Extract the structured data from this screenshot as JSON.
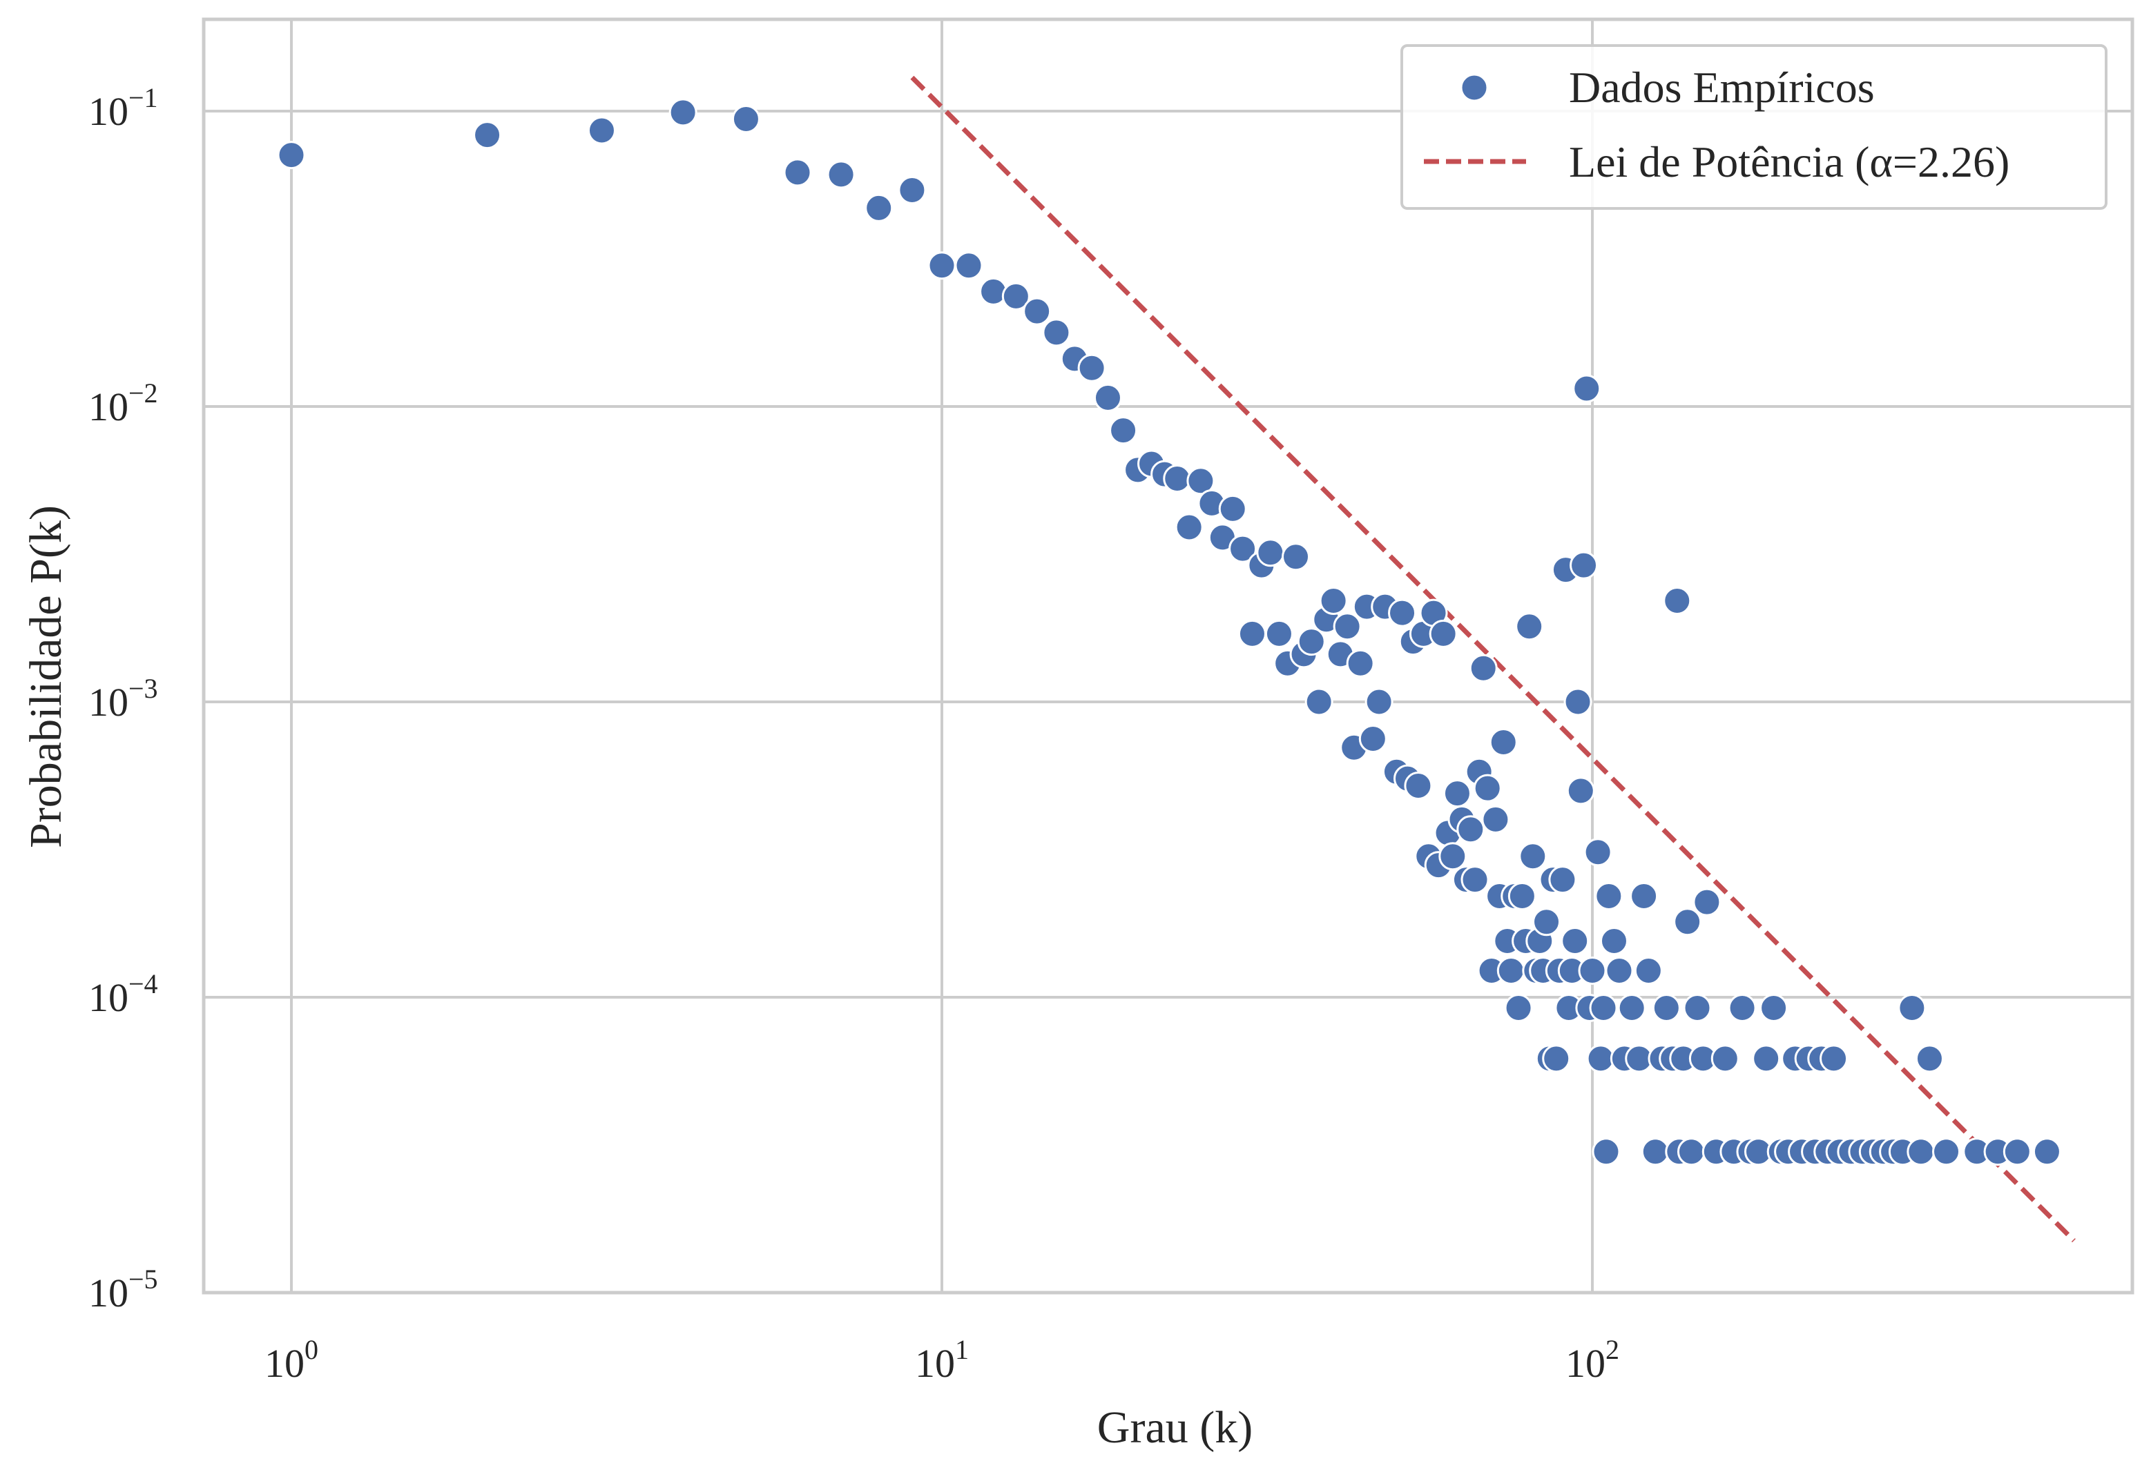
{
  "chart_data": {
    "type": "scatter",
    "title": "",
    "xlabel": "Grau (k)",
    "ylabel": "Probabilidade P(k)",
    "xscale": "log",
    "yscale": "log",
    "xlim": [
      0.7,
      650
    ],
    "ylim": [
      1e-05,
      0.21
    ],
    "grid": true,
    "legend_position": "top-right",
    "x_ticks": [
      {
        "value": 1,
        "base": "10",
        "exp": "0"
      },
      {
        "value": 10,
        "base": "10",
        "exp": "1"
      },
      {
        "value": 100,
        "base": "10",
        "exp": "2"
      }
    ],
    "y_ticks": [
      {
        "value": 0.1,
        "base": "10",
        "exp": "−1"
      },
      {
        "value": 0.01,
        "base": "10",
        "exp": "−2"
      },
      {
        "value": 0.001,
        "base": "10",
        "exp": "−3"
      },
      {
        "value": 0.0001,
        "base": "10",
        "exp": "−4"
      },
      {
        "value": 1e-05,
        "base": "10",
        "exp": "−5"
      }
    ],
    "colors": {
      "scatter": "#4c72b0",
      "fit": "#c44e52",
      "grid": "#cccccc",
      "frame": "#cccccc"
    },
    "series": [
      {
        "name": "Dados Empíricos",
        "kind": "scatter",
        "points": [
          [
            1,
            0.071
          ],
          [
            2,
            0.083
          ],
          [
            3,
            0.086
          ],
          [
            4,
            0.099
          ],
          [
            5,
            0.094
          ],
          [
            6,
            0.062
          ],
          [
            7,
            0.061
          ],
          [
            8,
            0.047
          ],
          [
            9,
            0.054
          ],
          [
            10,
            0.03
          ],
          [
            11,
            0.03
          ],
          [
            12,
            0.0245
          ],
          [
            13,
            0.0236
          ],
          [
            14,
            0.021
          ],
          [
            15,
            0.0178
          ],
          [
            16,
            0.0145
          ],
          [
            17,
            0.0135
          ],
          [
            18,
            0.0107
          ],
          [
            19,
            0.0083
          ],
          [
            20,
            0.0061
          ],
          [
            21,
            0.0064
          ],
          [
            22,
            0.0059
          ],
          [
            23,
            0.0057
          ],
          [
            24,
            0.0039
          ],
          [
            25,
            0.0056
          ],
          [
            26,
            0.0047
          ],
          [
            27,
            0.0036
          ],
          [
            28,
            0.0045
          ],
          [
            29,
            0.0033
          ],
          [
            30,
            0.0017
          ],
          [
            31,
            0.0029
          ],
          [
            32,
            0.0032
          ],
          [
            33,
            0.0017
          ],
          [
            34,
            0.00135
          ],
          [
            35,
            0.0031
          ],
          [
            36,
            0.00145
          ],
          [
            37,
            0.0016
          ],
          [
            38,
            0.001
          ],
          [
            39,
            0.0019
          ],
          [
            40,
            0.0022
          ],
          [
            41,
            0.00145
          ],
          [
            42,
            0.0018
          ],
          [
            43,
            0.0007
          ],
          [
            44,
            0.00135
          ],
          [
            45,
            0.0021
          ],
          [
            46,
            0.00075
          ],
          [
            47,
            0.001
          ],
          [
            48,
            0.0021
          ],
          [
            50,
            0.00058
          ],
          [
            51,
            0.002
          ],
          [
            52,
            0.00055
          ],
          [
            53,
            0.0016
          ],
          [
            54,
            0.00052
          ],
          [
            55,
            0.0017
          ],
          [
            56,
            0.0003
          ],
          [
            57,
            0.002
          ],
          [
            58,
            0.00028
          ],
          [
            59,
            0.0017
          ],
          [
            60,
            0.00036
          ],
          [
            61,
            0.0003
          ],
          [
            62,
            0.00049
          ],
          [
            63,
            0.0004
          ],
          [
            64,
            0.00025
          ],
          [
            65,
            0.00037
          ],
          [
            66,
            0.00025
          ],
          [
            67,
            0.00058
          ],
          [
            68,
            0.0013
          ],
          [
            69,
            0.00051
          ],
          [
            70,
            0.000123
          ],
          [
            71,
            0.0004
          ],
          [
            72,
            0.00022
          ],
          [
            73,
            0.00073
          ],
          [
            74,
            0.000155
          ],
          [
            75,
            0.000123
          ],
          [
            76,
            0.00022
          ],
          [
            77,
            9.2e-05
          ],
          [
            78,
            0.00022
          ],
          [
            79,
            0.000155
          ],
          [
            80,
            0.0018
          ],
          [
            81,
            0.0003
          ],
          [
            82,
            0.000123
          ],
          [
            83,
            0.000155
          ],
          [
            84,
            0.000123
          ],
          [
            85,
            0.00018
          ],
          [
            86,
            6.2e-05
          ],
          [
            87,
            0.00025
          ],
          [
            88,
            6.2e-05
          ],
          [
            89,
            0.000123
          ],
          [
            90,
            0.00025
          ],
          [
            91,
            0.0028
          ],
          [
            92,
            9.2e-05
          ],
          [
            93,
            0.000123
          ],
          [
            94,
            0.000155
          ],
          [
            95,
            0.001
          ],
          [
            96,
            0.0005
          ],
          [
            97,
            0.0029
          ],
          [
            98,
            0.0115
          ],
          [
            99,
            9.2e-05
          ],
          [
            100,
            0.000123
          ],
          [
            102,
            0.00031
          ],
          [
            103,
            6.2e-05
          ],
          [
            104,
            9.2e-05
          ],
          [
            105,
            3e-05
          ],
          [
            106,
            0.00022
          ],
          [
            108,
            0.000155
          ],
          [
            110,
            0.000123
          ],
          [
            112,
            6.2e-05
          ],
          [
            115,
            9.2e-05
          ],
          [
            118,
            6.2e-05
          ],
          [
            120,
            0.00022
          ],
          [
            122,
            0.000123
          ],
          [
            125,
            3e-05
          ],
          [
            128,
            6.2e-05
          ],
          [
            130,
            9.2e-05
          ],
          [
            133,
            6.2e-05
          ],
          [
            135,
            0.0022
          ],
          [
            136,
            3e-05
          ],
          [
            138,
            6.2e-05
          ],
          [
            140,
            0.00018
          ],
          [
            142,
            3e-05
          ],
          [
            145,
            9.2e-05
          ],
          [
            148,
            6.2e-05
          ],
          [
            150,
            0.00021
          ],
          [
            155,
            3e-05
          ],
          [
            160,
            6.2e-05
          ],
          [
            165,
            3e-05
          ],
          [
            170,
            9.2e-05
          ],
          [
            175,
            3e-05
          ],
          [
            180,
            3e-05
          ],
          [
            185,
            6.2e-05
          ],
          [
            190,
            9.2e-05
          ],
          [
            195,
            3e-05
          ],
          [
            200,
            3e-05
          ],
          [
            205,
            6.2e-05
          ],
          [
            210,
            3e-05
          ],
          [
            215,
            6.2e-05
          ],
          [
            220,
            3e-05
          ],
          [
            225,
            6.2e-05
          ],
          [
            230,
            3e-05
          ],
          [
            235,
            6.2e-05
          ],
          [
            240,
            3e-05
          ],
          [
            250,
            3e-05
          ],
          [
            260,
            3e-05
          ],
          [
            270,
            3e-05
          ],
          [
            280,
            3e-05
          ],
          [
            290,
            3e-05
          ],
          [
            300,
            3e-05
          ],
          [
            310,
            9.2e-05
          ],
          [
            320,
            3e-05
          ],
          [
            330,
            6.2e-05
          ],
          [
            350,
            3e-05
          ],
          [
            390,
            3e-05
          ],
          [
            420,
            3e-05
          ],
          [
            450,
            3e-05
          ],
          [
            500,
            3e-05
          ]
        ]
      },
      {
        "name": "Lei de Potência (α=2.26)",
        "kind": "line",
        "points": [
          [
            9,
            0.13
          ],
          [
            550,
            1.5e-05
          ]
        ]
      }
    ]
  }
}
